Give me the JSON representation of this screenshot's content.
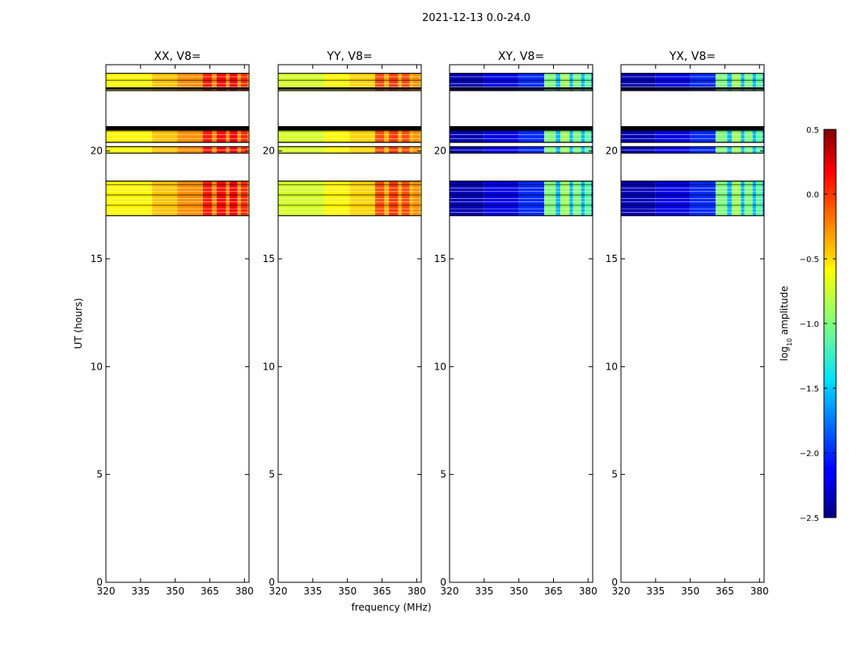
{
  "suptitle": "2021-12-13 0.0-24.0",
  "shared": {
    "xlabel": "frequency (MHz)",
    "ylabel": "UT (hours)",
    "xlim": [
      320,
      382
    ],
    "ylim": [
      0,
      24
    ],
    "xticks": [
      320,
      335,
      350,
      365,
      380
    ],
    "yticks": [
      0,
      5,
      10,
      15,
      20
    ],
    "colormap": "jet"
  },
  "colorbar": {
    "label": "log",
    "label_sub": "10",
    "label_rest": " amplitude",
    "range": [
      -2.5,
      0.5
    ],
    "ticks": [
      0.5,
      0.0,
      -0.5,
      -1.0,
      -1.5,
      -2.0,
      -2.5
    ],
    "tick_labels": [
      "0.5",
      "0.0",
      "−0.5",
      "−1.0",
      "−1.5",
      "−2.0",
      "−2.5"
    ]
  },
  "chart_data": [
    {
      "type": "heatmap",
      "title": "XX, V8=",
      "data_ranges": [
        [
          17.0,
          18.6
        ],
        [
          19.9,
          20.2
        ],
        [
          20.4,
          21.1
        ],
        [
          22.8,
          23.6
        ]
      ],
      "black_bands": [
        [
          20.95,
          21.15
        ],
        [
          22.85,
          22.95
        ]
      ],
      "bands": [
        {
          "f0": 320,
          "f1": 340,
          "value": -0.6
        },
        {
          "f0": 340,
          "f1": 351,
          "value": -0.45
        },
        {
          "f0": 351,
          "f1": 362,
          "value": -0.3
        },
        {
          "f0": 362,
          "f1": 366,
          "value": 0.05
        },
        {
          "f0": 366,
          "f1": 368,
          "value": -0.3
        },
        {
          "f0": 368,
          "f1": 372,
          "value": 0.1
        },
        {
          "f0": 372,
          "f1": 373.5,
          "value": -0.3
        },
        {
          "f0": 373.5,
          "f1": 377,
          "value": 0.15
        },
        {
          "f0": 377,
          "f1": 378.5,
          "value": -0.3
        },
        {
          "f0": 378.5,
          "f1": 381.5,
          "value": 0.0
        },
        {
          "f0": 381.5,
          "f1": 382,
          "value": -0.5
        }
      ]
    },
    {
      "type": "heatmap",
      "title": "YY, V8=",
      "data_ranges": [
        [
          17.0,
          18.6
        ],
        [
          19.9,
          20.2
        ],
        [
          20.4,
          21.1
        ],
        [
          22.8,
          23.6
        ]
      ],
      "black_bands": [
        [
          20.95,
          21.15
        ],
        [
          22.85,
          22.95
        ]
      ],
      "bands": [
        {
          "f0": 320,
          "f1": 340,
          "value": -0.75
        },
        {
          "f0": 340,
          "f1": 351,
          "value": -0.6
        },
        {
          "f0": 351,
          "f1": 362,
          "value": -0.5
        },
        {
          "f0": 362,
          "f1": 366,
          "value": -0.1
        },
        {
          "f0": 366,
          "f1": 368,
          "value": -0.4
        },
        {
          "f0": 368,
          "f1": 372,
          "value": -0.05
        },
        {
          "f0": 372,
          "f1": 373.5,
          "value": -0.4
        },
        {
          "f0": 373.5,
          "f1": 377,
          "value": -0.1
        },
        {
          "f0": 377,
          "f1": 378.5,
          "value": -0.4
        },
        {
          "f0": 378.5,
          "f1": 381.5,
          "value": -0.3
        },
        {
          "f0": 381.5,
          "f1": 382,
          "value": -0.7
        }
      ]
    },
    {
      "type": "heatmap",
      "title": "XY, V8=",
      "data_ranges": [
        [
          17.0,
          18.6
        ],
        [
          19.9,
          20.2
        ],
        [
          20.4,
          21.1
        ],
        [
          22.8,
          23.6
        ]
      ],
      "black_bands": [
        [
          20.95,
          21.15
        ],
        [
          22.85,
          22.95
        ]
      ],
      "bands": [
        {
          "f0": 320,
          "f1": 335,
          "value": -2.35
        },
        {
          "f0": 335,
          "f1": 350,
          "value": -2.2
        },
        {
          "f0": 350,
          "f1": 361,
          "value": -2.0
        },
        {
          "f0": 361,
          "f1": 366,
          "value": -1.0
        },
        {
          "f0": 366,
          "f1": 368,
          "value": -1.6
        },
        {
          "f0": 368,
          "f1": 372,
          "value": -0.9
        },
        {
          "f0": 372,
          "f1": 373.5,
          "value": -1.6
        },
        {
          "f0": 373.5,
          "f1": 377,
          "value": -1.0
        },
        {
          "f0": 377,
          "f1": 378.5,
          "value": -1.6
        },
        {
          "f0": 378.5,
          "f1": 381.5,
          "value": -1.1
        },
        {
          "f0": 381.5,
          "f1": 382,
          "value": -2.3
        }
      ]
    },
    {
      "type": "heatmap",
      "title": "YX, V8=",
      "data_ranges": [
        [
          17.0,
          18.6
        ],
        [
          19.9,
          20.2
        ],
        [
          20.4,
          21.1
        ],
        [
          22.8,
          23.6
        ]
      ],
      "black_bands": [
        [
          20.95,
          21.15
        ],
        [
          22.85,
          22.95
        ]
      ],
      "bands": [
        {
          "f0": 320,
          "f1": 335,
          "value": -2.35
        },
        {
          "f0": 335,
          "f1": 350,
          "value": -2.2
        },
        {
          "f0": 350,
          "f1": 361,
          "value": -2.0
        },
        {
          "f0": 361,
          "f1": 366,
          "value": -1.0
        },
        {
          "f0": 366,
          "f1": 368,
          "value": -1.6
        },
        {
          "f0": 368,
          "f1": 372,
          "value": -0.9
        },
        {
          "f0": 372,
          "f1": 373.5,
          "value": -1.6
        },
        {
          "f0": 373.5,
          "f1": 377,
          "value": -1.0
        },
        {
          "f0": 377,
          "f1": 378.5,
          "value": -1.6
        },
        {
          "f0": 378.5,
          "f1": 381.5,
          "value": -1.1
        },
        {
          "f0": 381.5,
          "f1": 382,
          "value": -2.3
        }
      ]
    }
  ]
}
